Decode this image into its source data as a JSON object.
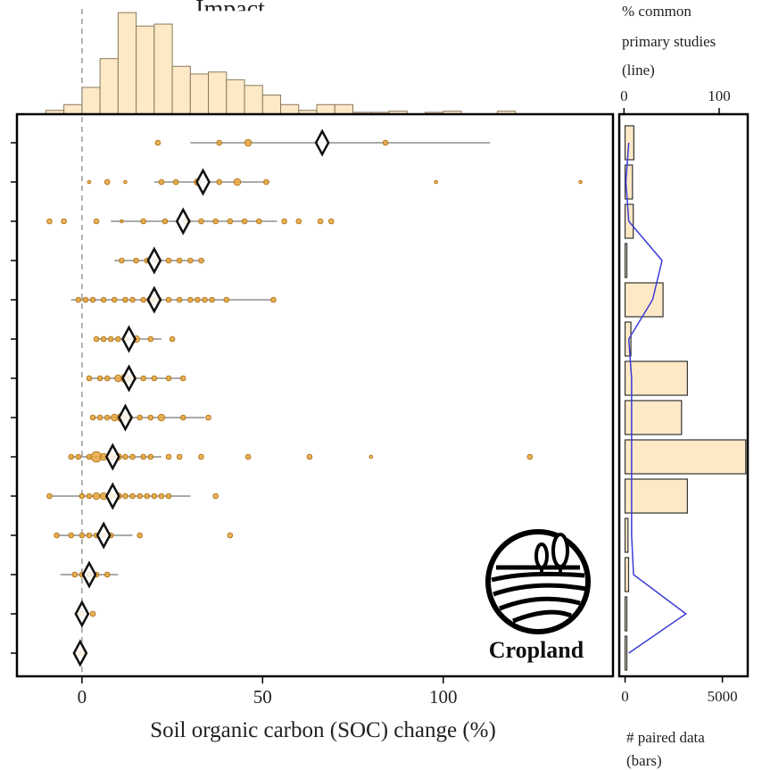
{
  "chart_data": {
    "type": "scatter",
    "header_fragment": "Impact",
    "panel_label": "Cropland",
    "main": {
      "xlabel": "Soil organic carbon (SOC) change (%)",
      "xlim": [
        -18,
        147
      ],
      "xticks": [
        0,
        50,
        100
      ],
      "zero_line": 0,
      "rows": [
        {
          "mean": 66.5,
          "ci": [
            30,
            113
          ],
          "points": [
            [
              21,
              2
            ],
            [
              38,
              2
            ],
            [
              46,
              3
            ],
            [
              84,
              2
            ]
          ]
        },
        {
          "mean": 33.5,
          "ci": [
            20,
            52
          ],
          "points": [
            [
              2,
              1
            ],
            [
              7,
              2
            ],
            [
              12,
              1
            ],
            [
              22,
              2
            ],
            [
              26,
              2
            ],
            [
              32,
              3
            ],
            [
              38,
              2
            ],
            [
              43,
              3
            ],
            [
              51,
              2
            ],
            [
              98,
              1
            ],
            [
              138,
              1
            ]
          ]
        },
        {
          "mean": 28.0,
          "ci": [
            8,
            54
          ],
          "points": [
            [
              -9,
              2
            ],
            [
              -5,
              2
            ],
            [
              4,
              2
            ],
            [
              11,
              1
            ],
            [
              17,
              2
            ],
            [
              23,
              2
            ],
            [
              29,
              3
            ],
            [
              33,
              2
            ],
            [
              37,
              2
            ],
            [
              41,
              2
            ],
            [
              45,
              2
            ],
            [
              49,
              2
            ],
            [
              56,
              2
            ],
            [
              60,
              2
            ],
            [
              66,
              2
            ],
            [
              69,
              2
            ]
          ]
        },
        {
          "mean": 20.0,
          "ci": [
            9,
            34
          ],
          "points": [
            [
              11,
              2
            ],
            [
              15,
              2
            ],
            [
              18,
              2
            ],
            [
              21,
              2
            ],
            [
              24,
              2
            ],
            [
              27,
              2
            ],
            [
              30,
              2
            ],
            [
              33,
              2
            ]
          ]
        },
        {
          "mean": 20.0,
          "ci": [
            -3,
            53
          ],
          "points": [
            [
              -1,
              2
            ],
            [
              1,
              2
            ],
            [
              3,
              2
            ],
            [
              6,
              2
            ],
            [
              9,
              2
            ],
            [
              12,
              2
            ],
            [
              14,
              2
            ],
            [
              17,
              2
            ],
            [
              19,
              3
            ],
            [
              21,
              3
            ],
            [
              24,
              2
            ],
            [
              27,
              2
            ],
            [
              30,
              2
            ],
            [
              32,
              2
            ],
            [
              34,
              2
            ],
            [
              36,
              2
            ],
            [
              40,
              2
            ],
            [
              53,
              2
            ]
          ]
        },
        {
          "mean": 13.0,
          "ci": [
            4,
            22
          ],
          "points": [
            [
              4,
              2
            ],
            [
              6,
              2
            ],
            [
              8,
              2
            ],
            [
              10,
              2
            ],
            [
              12,
              2
            ],
            [
              15,
              3
            ],
            [
              19,
              2
            ],
            [
              25,
              2
            ]
          ]
        },
        {
          "mean": 13.0,
          "ci": [
            2,
            28
          ],
          "points": [
            [
              2,
              2
            ],
            [
              5,
              2
            ],
            [
              7,
              2
            ],
            [
              10,
              3
            ],
            [
              12,
              4
            ],
            [
              14,
              3
            ],
            [
              17,
              2
            ],
            [
              20,
              2
            ],
            [
              24,
              2
            ],
            [
              28,
              2
            ]
          ]
        },
        {
          "mean": 12.0,
          "ci": [
            3,
            34
          ],
          "points": [
            [
              3,
              2
            ],
            [
              5,
              2
            ],
            [
              7,
              2
            ],
            [
              9,
              3
            ],
            [
              11,
              4
            ],
            [
              13,
              3
            ],
            [
              16,
              2
            ],
            [
              19,
              2
            ],
            [
              22,
              3
            ],
            [
              28,
              2
            ],
            [
              35,
              2
            ]
          ]
        },
        {
          "mean": 8.5,
          "ci": [
            -3,
            22
          ],
          "points": [
            [
              -3,
              2
            ],
            [
              -1,
              2
            ],
            [
              2,
              2
            ],
            [
              4,
              5
            ],
            [
              6,
              3
            ],
            [
              8,
              3
            ],
            [
              10,
              3
            ],
            [
              12,
              2
            ],
            [
              14,
              2
            ],
            [
              17,
              2
            ],
            [
              19,
              2
            ],
            [
              24,
              2
            ],
            [
              27,
              2
            ],
            [
              33,
              2
            ],
            [
              46,
              2
            ],
            [
              63,
              2
            ],
            [
              80,
              1
            ],
            [
              124,
              2
            ]
          ]
        },
        {
          "mean": 8.5,
          "ci": [
            -9,
            30
          ],
          "points": [
            [
              -9,
              2
            ],
            [
              0,
              2
            ],
            [
              2,
              2
            ],
            [
              4,
              3
            ],
            [
              6,
              3
            ],
            [
              8,
              3
            ],
            [
              10,
              3
            ],
            [
              12,
              2
            ],
            [
              14,
              2
            ],
            [
              16,
              2
            ],
            [
              18,
              2
            ],
            [
              20,
              2
            ],
            [
              22,
              2
            ],
            [
              24,
              2
            ],
            [
              37,
              2
            ]
          ]
        },
        {
          "mean": 6.0,
          "ci": [
            -7,
            14
          ],
          "points": [
            [
              -7,
              2
            ],
            [
              -3,
              2
            ],
            [
              0,
              2
            ],
            [
              2,
              2
            ],
            [
              4,
              2
            ],
            [
              6,
              2
            ],
            [
              8,
              2
            ],
            [
              16,
              2
            ],
            [
              41,
              2
            ]
          ]
        },
        {
          "mean": 2.0,
          "ci": [
            -6,
            10
          ],
          "points": [
            [
              -2,
              2
            ],
            [
              0,
              2
            ],
            [
              2,
              2
            ],
            [
              4,
              2
            ],
            [
              7,
              2
            ]
          ]
        },
        {
          "mean": 0.0,
          "ci": [
            -2,
            2
          ],
          "points": [
            [
              -1,
              2
            ],
            [
              0,
              2
            ],
            [
              3,
              2
            ]
          ]
        },
        {
          "mean": -0.5,
          "ci": [
            -1.5,
            0.5
          ],
          "points": [
            [
              -1,
              2
            ],
            [
              0,
              2
            ]
          ]
        }
      ]
    },
    "histogram": {
      "bins_from": -10,
      "bin_width": 5,
      "counts": [
        10,
        25,
        70,
        145,
        265,
        230,
        235,
        125,
        105,
        110,
        90,
        75,
        50,
        25,
        10,
        25,
        25,
        5,
        5,
        8,
        0,
        5,
        8,
        0,
        0,
        8
      ],
      "ymax": 270
    },
    "side": {
      "bars_label": "# paired data\n(bars)",
      "line_label": "% common\nprimary studies\n(line)",
      "bars_xticks": [
        0,
        5000
      ],
      "bars_xlim": [
        -300,
        6300
      ],
      "line_xticks": [
        0,
        100
      ],
      "line_xlim": [
        -5,
        130
      ],
      "paired_data": [
        450,
        380,
        420,
        80,
        1950,
        300,
        3200,
        2900,
        6200,
        3200,
        150,
        180,
        90,
        70
      ],
      "pct_common": [
        5,
        2,
        5,
        40,
        30,
        5,
        8,
        8,
        8,
        8,
        8,
        10,
        65,
        5
      ],
      "line_color": "#3a3ad8",
      "bar_color": "#fde9c6"
    },
    "colors": {
      "point_fill": "#e9a73b",
      "point_stroke": "#b5781f",
      "hist_fill": "#fde9c6",
      "hist_stroke": "#8a7a5c"
    }
  }
}
